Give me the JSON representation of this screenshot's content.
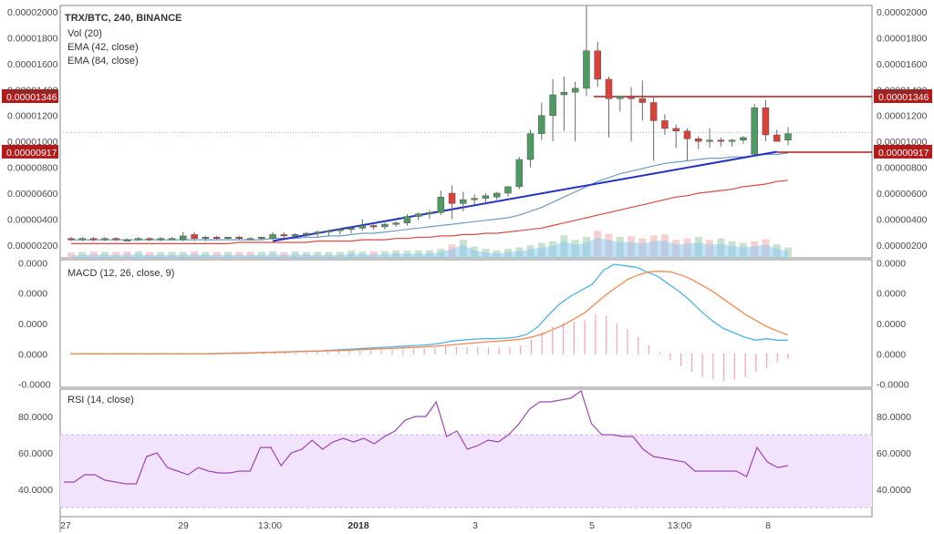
{
  "chart_data": [
    {
      "type": "candlestick",
      "panel": "price",
      "title": "TRX/BTC, 240, BINANCE",
      "legend": [
        "Vol (20)",
        "EMA (42, close)",
        "EMA (84, close)"
      ],
      "yticks": [
        "0.00000200",
        "0.00000400",
        "0.00000600",
        "0.00000800",
        "0.00001000",
        "0.00001200",
        "0.00001400",
        "0.00001600",
        "0.00001800",
        "0.00002000"
      ],
      "ylim": [
        1e-06,
        2.05e-05
      ],
      "price_labels": [
        "0.00001346",
        "0.00000917"
      ],
      "horizontal_levels": [
        1.346e-05,
        9.17e-06
      ],
      "dotted_level": 1.07e-05,
      "trendline": {
        "start": [
          18,
          2.3e-06
        ],
        "end": [
          63,
          9.2e-06
        ]
      },
      "candles": [
        {
          "o": 2.5e-06,
          "h": 2.6e-06,
          "l": 2.3e-06,
          "c": 2.4e-06
        },
        {
          "o": 2.4e-06,
          "h": 2.6e-06,
          "l": 2.3e-06,
          "c": 2.5e-06
        },
        {
          "o": 2.5e-06,
          "h": 2.6e-06,
          "l": 2.3e-06,
          "c": 2.4e-06
        },
        {
          "o": 2.4e-06,
          "h": 2.6e-06,
          "l": 2.3e-06,
          "c": 2.5e-06
        },
        {
          "o": 2.5e-06,
          "h": 2.6e-06,
          "l": 2.3e-06,
          "c": 2.4e-06
        },
        {
          "o": 2.4e-06,
          "h": 2.5e-06,
          "l": 2.3e-06,
          "c": 2.4e-06
        },
        {
          "o": 2.4e-06,
          "h": 2.6e-06,
          "l": 2.3e-06,
          "c": 2.5e-06
        },
        {
          "o": 2.5e-06,
          "h": 2.6e-06,
          "l": 2.3e-06,
          "c": 2.4e-06
        },
        {
          "o": 2.4e-06,
          "h": 2.6e-06,
          "l": 2.3e-06,
          "c": 2.5e-06
        },
        {
          "o": 2.5e-06,
          "h": 2.6e-06,
          "l": 2.4e-06,
          "c": 2.5e-06
        },
        {
          "o": 2.4e-06,
          "h": 3e-06,
          "l": 2.3e-06,
          "c": 2.7e-06
        },
        {
          "o": 2.8e-06,
          "h": 3e-06,
          "l": 2.3e-06,
          "c": 2.5e-06
        },
        {
          "o": 2.5e-06,
          "h": 2.7e-06,
          "l": 2.3e-06,
          "c": 2.6e-06
        },
        {
          "o": 2.6e-06,
          "h": 2.7e-06,
          "l": 2.4e-06,
          "c": 2.5e-06
        },
        {
          "o": 2.5e-06,
          "h": 2.6e-06,
          "l": 2.4e-06,
          "c": 2.6e-06
        },
        {
          "o": 2.6e-06,
          "h": 2.7e-06,
          "l": 2.4e-06,
          "c": 2.5e-06
        },
        {
          "o": 2.5e-06,
          "h": 2.6e-06,
          "l": 2.4e-06,
          "c": 2.5e-06
        },
        {
          "o": 2.5e-06,
          "h": 2.6e-06,
          "l": 2.4e-06,
          "c": 2.6e-06
        },
        {
          "o": 2.5e-06,
          "h": 3e-06,
          "l": 2.4e-06,
          "c": 2.8e-06
        },
        {
          "o": 2.8e-06,
          "h": 3e-06,
          "l": 2.5e-06,
          "c": 2.7e-06
        },
        {
          "o": 2.7e-06,
          "h": 2.9e-06,
          "l": 2.5e-06,
          "c": 2.8e-06
        },
        {
          "o": 2.8e-06,
          "h": 3e-06,
          "l": 2.6e-06,
          "c": 2.9e-06
        },
        {
          "o": 2.9e-06,
          "h": 3.1e-06,
          "l": 2.6e-06,
          "c": 3e-06
        },
        {
          "o": 3e-06,
          "h": 3.2e-06,
          "l": 2.7e-06,
          "c": 3.1e-06
        },
        {
          "o": 3.1e-06,
          "h": 3.3e-06,
          "l": 2.8e-06,
          "c": 3.2e-06
        },
        {
          "o": 3.2e-06,
          "h": 3.4e-06,
          "l": 2.9e-06,
          "c": 3.3e-06
        },
        {
          "o": 3.3e-06,
          "h": 4e-06,
          "l": 3.1e-06,
          "c": 3.5e-06
        },
        {
          "o": 3.5e-06,
          "h": 3.7e-06,
          "l": 3.2e-06,
          "c": 3.4e-06
        },
        {
          "o": 3.4e-06,
          "h": 3.7e-06,
          "l": 3.2e-06,
          "c": 3.6e-06
        },
        {
          "o": 3.6e-06,
          "h": 3.8e-06,
          "l": 3.4e-06,
          "c": 3.7e-06
        },
        {
          "o": 3.7e-06,
          "h": 4.4e-06,
          "l": 3.5e-06,
          "c": 4.2e-06
        },
        {
          "o": 4.2e-06,
          "h": 4.5e-06,
          "l": 3.9e-06,
          "c": 4.4e-06
        },
        {
          "o": 4.4e-06,
          "h": 4.7e-06,
          "l": 4e-06,
          "c": 4.5e-06
        },
        {
          "o": 4.5e-06,
          "h": 6.2e-06,
          "l": 4.3e-06,
          "c": 5.7e-06
        },
        {
          "o": 6e-06,
          "h": 6.6e-06,
          "l": 4e-06,
          "c": 5.2e-06
        },
        {
          "o": 5.2e-06,
          "h": 6.1e-06,
          "l": 4.6e-06,
          "c": 5.5e-06
        },
        {
          "o": 5.5e-06,
          "h": 5.9e-06,
          "l": 5.1e-06,
          "c": 5.6e-06
        },
        {
          "o": 5.6e-06,
          "h": 6e-06,
          "l": 5.3e-06,
          "c": 5.8e-06
        },
        {
          "o": 5.7e-06,
          "h": 6.1e-06,
          "l": 5.5e-06,
          "c": 6e-06
        },
        {
          "o": 6e-06,
          "h": 6.4e-06,
          "l": 5.7e-06,
          "c": 6.5e-06
        },
        {
          "o": 6.5e-06,
          "h": 8.8e-06,
          "l": 6.3e-06,
          "c": 8.6e-06
        },
        {
          "o": 8.6e-06,
          "h": 1.09e-05,
          "l": 8e-06,
          "c": 1.06e-05
        },
        {
          "o": 1.06e-05,
          "h": 1.3e-05,
          "l": 1.01e-05,
          "c": 1.2e-05
        },
        {
          "o": 1.2e-05,
          "h": 1.48e-05,
          "l": 1e-05,
          "c": 1.36e-05
        },
        {
          "o": 1.36e-05,
          "h": 1.5e-05,
          "l": 1.08e-05,
          "c": 1.38e-05
        },
        {
          "o": 1.38e-05,
          "h": 1.46e-05,
          "l": 1e-05,
          "c": 1.41e-05
        },
        {
          "o": 1.41e-05,
          "h": 2.05e-05,
          "l": 1.35e-05,
          "c": 1.7e-05
        },
        {
          "o": 1.7e-05,
          "h": 1.77e-05,
          "l": 1.42e-05,
          "c": 1.48e-05
        },
        {
          "o": 1.48e-05,
          "h": 1.5e-05,
          "l": 1.03e-05,
          "c": 1.33e-05
        },
        {
          "o": 1.33e-05,
          "h": 1.35e-05,
          "l": 1.23e-05,
          "c": 1.35e-05
        },
        {
          "o": 1.35e-05,
          "h": 1.42e-05,
          "l": 1e-05,
          "c": 1.33e-05
        },
        {
          "o": 1.33e-05,
          "h": 1.47e-05,
          "l": 1.16e-05,
          "c": 1.3e-05
        },
        {
          "o": 1.3e-05,
          "h": 1.34e-05,
          "l": 8.5e-06,
          "c": 1.16e-05
        },
        {
          "o": 1.16e-05,
          "h": 1.21e-05,
          "l": 1.05e-05,
          "c": 1.1e-05
        },
        {
          "o": 1.1e-05,
          "h": 1.13e-05,
          "l": 9.5e-06,
          "c": 1.08e-05
        },
        {
          "o": 1.08e-05,
          "h": 1.1e-05,
          "l": 8.5e-06,
          "c": 1.02e-05
        },
        {
          "o": 1.02e-05,
          "h": 1.04e-05,
          "l": 9.4e-06,
          "c": 1e-05
        },
        {
          "o": 1e-05,
          "h": 1.1e-05,
          "l": 9.5e-06,
          "c": 1.01e-05
        },
        {
          "o": 1.01e-05,
          "h": 1.03e-05,
          "l": 9.6e-06,
          "c": 1e-05
        },
        {
          "o": 1e-05,
          "h": 1.02e-05,
          "l": 9.6e-06,
          "c": 1.01e-05
        },
        {
          "o": 1.01e-05,
          "h": 1.04e-05,
          "l": 9.8e-06,
          "c": 1.03e-05
        },
        {
          "o": 9e-06,
          "h": 1.29e-05,
          "l": 8.8e-06,
          "c": 1.26e-05
        },
        {
          "o": 1.26e-05,
          "h": 1.32e-05,
          "l": 1e-05,
          "c": 1.05e-05
        },
        {
          "o": 1.05e-05,
          "h": 1.09e-05,
          "l": 1.01e-05,
          "c": 1e-05
        },
        {
          "o": 1.01e-05,
          "h": 1.11e-05,
          "l": 9.7e-06,
          "c": 1.06e-05
        }
      ],
      "ema42": [
        2.4e-06,
        2.4e-06,
        2.4e-06,
        2.4e-06,
        2.4e-06,
        2.4e-06,
        2.4e-06,
        2.4e-06,
        2.4e-06,
        2.4e-06,
        2.4e-06,
        2.4e-06,
        2.4e-06,
        2.4e-06,
        2.4e-06,
        2.4e-06,
        2.4e-06,
        2.4e-06,
        2.5e-06,
        2.5e-06,
        2.5e-06,
        2.6e-06,
        2.6e-06,
        2.7e-06,
        2.7e-06,
        2.8e-06,
        2.9e-06,
        2.9e-06,
        3e-06,
        3.1e-06,
        3.2e-06,
        3.3e-06,
        3.4e-06,
        3.5e-06,
        3.6e-06,
        3.7e-06,
        3.8e-06,
        3.9e-06,
        4e-06,
        4.1e-06,
        4.3e-06,
        4.6e-06,
        4.9e-06,
        5.3e-06,
        5.7e-06,
        6.1e-06,
        6.5e-06,
        6.9e-06,
        7.2e-06,
        7.5e-06,
        7.7e-06,
        7.9e-06,
        8.1e-06,
        8.3e-06,
        8.4e-06,
        8.5e-06,
        8.6e-06,
        8.7e-06,
        8.7e-06,
        8.8e-06,
        8.8e-06,
        8.9e-06,
        9e-06,
        9e-06,
        9.1e-06
      ],
      "ema84": [
        2.1e-06,
        2.1e-06,
        2.1e-06,
        2.1e-06,
        2.1e-06,
        2.1e-06,
        2.1e-06,
        2.1e-06,
        2.1e-06,
        2.1e-06,
        2.1e-06,
        2.1e-06,
        2.1e-06,
        2.1e-06,
        2.1e-06,
        2.2e-06,
        2.2e-06,
        2.2e-06,
        2.2e-06,
        2.2e-06,
        2.2e-06,
        2.2e-06,
        2.3e-06,
        2.3e-06,
        2.3e-06,
        2.3e-06,
        2.4e-06,
        2.4e-06,
        2.4e-06,
        2.5e-06,
        2.5e-06,
        2.6e-06,
        2.6e-06,
        2.7e-06,
        2.7e-06,
        2.8e-06,
        2.8e-06,
        2.9e-06,
        2.9e-06,
        3e-06,
        3.1e-06,
        3.2e-06,
        3.3e-06,
        3.5e-06,
        3.7e-06,
        3.9e-06,
        4.1e-06,
        4.3e-06,
        4.5e-06,
        4.7e-06,
        4.9e-06,
        5.1e-06,
        5.3e-06,
        5.5e-06,
        5.7e-06,
        5.8e-06,
        6e-06,
        6.1e-06,
        6.2e-06,
        6.3e-06,
        6.5e-06,
        6.6e-06,
        6.7e-06,
        6.9e-06,
        7e-06
      ],
      "volume": [
        0.18,
        0.2,
        0.22,
        0.2,
        0.2,
        0.21,
        0.22,
        0.2,
        0.2,
        0.2,
        0.2,
        0.22,
        0.2,
        0.2,
        0.2,
        0.2,
        0.2,
        0.2,
        0.22,
        0.2,
        0.22,
        0.2,
        0.2,
        0.2,
        0.2,
        0.25,
        0.22,
        0.22,
        0.22,
        0.25,
        0.24,
        0.25,
        0.25,
        0.3,
        0.45,
        0.6,
        0.38,
        0.3,
        0.25,
        0.3,
        0.35,
        0.42,
        0.5,
        0.55,
        0.75,
        0.6,
        0.7,
        0.9,
        0.8,
        0.7,
        0.72,
        0.65,
        0.75,
        0.78,
        0.6,
        0.65,
        0.7,
        0.6,
        0.65,
        0.55,
        0.5,
        0.55,
        0.62,
        0.45,
        0.35
      ],
      "volume_up": [
        false,
        true,
        false,
        true,
        false,
        false,
        true,
        false,
        true,
        true,
        true,
        false,
        true,
        false,
        true,
        false,
        false,
        true,
        true,
        false,
        true,
        true,
        true,
        true,
        true,
        true,
        true,
        false,
        true,
        true,
        true,
        true,
        true,
        true,
        false,
        true,
        true,
        true,
        true,
        true,
        true,
        true,
        true,
        true,
        true,
        true,
        true,
        false,
        false,
        true,
        false,
        false,
        false,
        false,
        false,
        false,
        true,
        false,
        true,
        true,
        true,
        false,
        false,
        true,
        true
      ]
    },
    {
      "type": "line",
      "panel": "macd",
      "title": "MACD (12, 26, close, 9)",
      "yticks": [
        "-0.0000",
        "0.0000",
        "0.0000",
        "0.0000",
        "0.0000"
      ],
      "ylim": [
        -1.1,
        3.1
      ],
      "series": [
        {
          "name": "MACD",
          "color": "#4fb3e8",
          "values": [
            0,
            0,
            0,
            0,
            0,
            0,
            0,
            0,
            0,
            0,
            0,
            0,
            0,
            0.01,
            0.02,
            0.03,
            0.03,
            0.04,
            0.05,
            0.06,
            0.07,
            0.08,
            0.09,
            0.1,
            0.12,
            0.14,
            0.16,
            0.18,
            0.2,
            0.22,
            0.24,
            0.26,
            0.28,
            0.3,
            0.35,
            0.42,
            0.45,
            0.48,
            0.5,
            0.5,
            0.52,
            0.55,
            0.65,
            0.9,
            1.3,
            1.65,
            1.9,
            2.1,
            2.3,
            2.75,
            2.95,
            2.9,
            2.85,
            2.7,
            2.55,
            2.3,
            2.05,
            1.75,
            1.4,
            1.1,
            0.85,
            0.7,
            0.55,
            0.45,
            0.5,
            0.45,
            0.45
          ]
        },
        {
          "name": "Signal",
          "color": "#f5894f",
          "values": [
            0,
            0,
            0,
            0,
            0,
            0,
            0,
            0,
            0,
            0,
            0,
            0,
            0,
            0,
            0.01,
            0.02,
            0.02,
            0.03,
            0.04,
            0.05,
            0.06,
            0.07,
            0.08,
            0.09,
            0.1,
            0.11,
            0.12,
            0.14,
            0.15,
            0.17,
            0.18,
            0.2,
            0.21,
            0.23,
            0.25,
            0.28,
            0.31,
            0.34,
            0.37,
            0.4,
            0.42,
            0.45,
            0.48,
            0.55,
            0.65,
            0.8,
            0.95,
            1.15,
            1.35,
            1.65,
            1.95,
            2.2,
            2.45,
            2.6,
            2.7,
            2.72,
            2.7,
            2.6,
            2.45,
            2.25,
            2.05,
            1.8,
            1.55,
            1.3,
            1.1,
            0.9,
            0.75,
            0.62
          ]
        }
      ],
      "histogram": [
        0,
        0,
        0,
        0,
        0,
        0,
        0,
        0,
        0,
        0,
        0,
        0,
        0,
        0,
        0.01,
        0.02,
        0.03,
        0.03,
        0.04,
        0.04,
        0.05,
        0.05,
        0.06,
        0.07,
        0.08,
        0.09,
        0.1,
        0.11,
        0.12,
        0.13,
        0.14,
        0.14,
        0.15,
        0.16,
        0.2,
        0.25,
        0.25,
        0.24,
        0.22,
        0.2,
        0.2,
        0.22,
        0.3,
        0.45,
        0.7,
        0.9,
        1.0,
        1.05,
        1.1,
        1.3,
        1.25,
        1.0,
        0.8,
        0.55,
        0.3,
        0.05,
        -0.2,
        -0.4,
        -0.6,
        -0.75,
        -0.85,
        -0.9,
        -0.85,
        -0.75,
        -0.6,
        -0.45,
        -0.3,
        -0.15
      ]
    },
    {
      "type": "line",
      "panel": "rsi",
      "title": "RSI (14, close)",
      "yticks": [
        "40.0000",
        "60.0000",
        "80.0000"
      ],
      "ylim": [
        25,
        95
      ],
      "band": [
        30,
        70
      ],
      "series": [
        {
          "name": "RSI",
          "color": "#a044b8",
          "values": [
            44,
            44,
            48,
            48,
            45,
            44,
            43,
            43,
            58,
            60,
            52,
            50,
            48,
            52,
            50,
            49,
            49,
            50,
            50,
            63,
            63,
            53,
            60,
            62,
            67,
            62,
            66,
            68,
            66,
            68,
            65,
            69,
            72,
            78,
            80,
            80,
            88,
            69,
            72,
            62,
            64,
            67,
            66,
            70,
            76,
            84,
            88,
            88,
            89,
            90,
            94,
            76,
            70,
            70,
            69,
            69,
            62,
            58,
            57,
            56,
            55,
            50,
            50,
            50,
            50,
            50,
            47,
            63,
            55,
            52,
            53
          ]
        }
      ]
    }
  ],
  "xaxis": {
    "ticks": [
      "27",
      "29",
      "13:00",
      "2018",
      "3",
      "5",
      "13:00",
      "8"
    ],
    "bold_tick": "2018"
  },
  "colors": {
    "up": "#4d9a63",
    "down": "#d9413a",
    "ema42": "#6f9cc0",
    "ema84": "#d94a45",
    "trendline": "#2431c9",
    "level": "#b31b1b",
    "vol_up": "#b9dcc2",
    "vol_down": "#f4c4c2",
    "vol_area": "#8ec9f0",
    "rsi_band": "#f1e3fb"
  }
}
